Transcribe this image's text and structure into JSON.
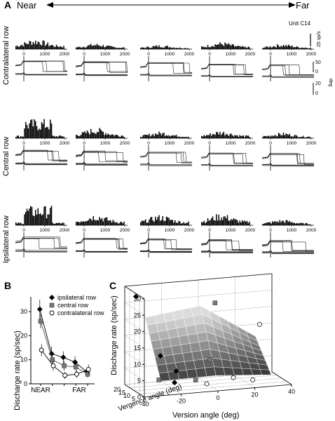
{
  "panel_a": {
    "label": "A",
    "near_label": "Near",
    "far_label": "Far",
    "unit_label": "Unit C14",
    "rate_scale_label": "25 sp/s",
    "eye_scale": {
      "ticks": [
        "50",
        "0",
        "20",
        "0"
      ],
      "unit": "deg"
    },
    "time_ticks": [
      "0",
      "1000",
      "2000"
    ],
    "rows": [
      {
        "name": "Contralateral row",
        "heights": [
          0.55,
          0.3,
          0.22,
          0.38,
          0.28
        ]
      },
      {
        "name": "Central row",
        "heights": [
          1.0,
          0.55,
          0.35,
          0.4,
          0.3
        ]
      },
      {
        "name": "Ipsilateral row",
        "heights": [
          1.0,
          0.6,
          0.55,
          0.62,
          0.3
        ]
      }
    ]
  },
  "chart_data": [
    {
      "panel": "B",
      "type": "line",
      "xlabel": "",
      "ylabel": "Discharge rate (sp/sec)",
      "x_tick_labels": {
        "0": "NEAR",
        "3": "FAR"
      },
      "x": [
        0,
        1,
        2,
        3,
        4
      ],
      "ylim": [
        0,
        35
      ],
      "yticks": [
        0,
        10,
        20,
        30
      ],
      "legend_position": "top-right",
      "series": [
        {
          "name": "ipsilateral row",
          "marker": "diamond",
          "values": [
            31,
            12.5,
            11,
            9,
            5
          ],
          "errors": [
            4,
            3,
            2.5,
            2.5,
            1.5
          ]
        },
        {
          "name": "central row",
          "marker": "square",
          "values": [
            26,
            10,
            7.5,
            7,
            4
          ],
          "errors": [
            3,
            2.5,
            2,
            2,
            1.5
          ]
        },
        {
          "name": "contralateral row",
          "marker": "circle-open",
          "values": [
            14,
            7.5,
            3.5,
            4,
            6
          ],
          "errors": [
            2.5,
            2,
            1.5,
            1.5,
            2
          ]
        }
      ]
    },
    {
      "panel": "C",
      "type": "surface",
      "xlabel": "Version angle (deg)",
      "ylabel": "Vergence angle (deg)",
      "zlabel": "Discharge rate (sp/sec)",
      "xticks": [
        "-40",
        "-20",
        "0",
        "20",
        "40"
      ],
      "yticks": [
        "5",
        "10",
        "15",
        "20"
      ],
      "zticks": [
        "0",
        "5",
        "10",
        "15",
        "20",
        "25",
        "30"
      ],
      "grid": true
    }
  ]
}
